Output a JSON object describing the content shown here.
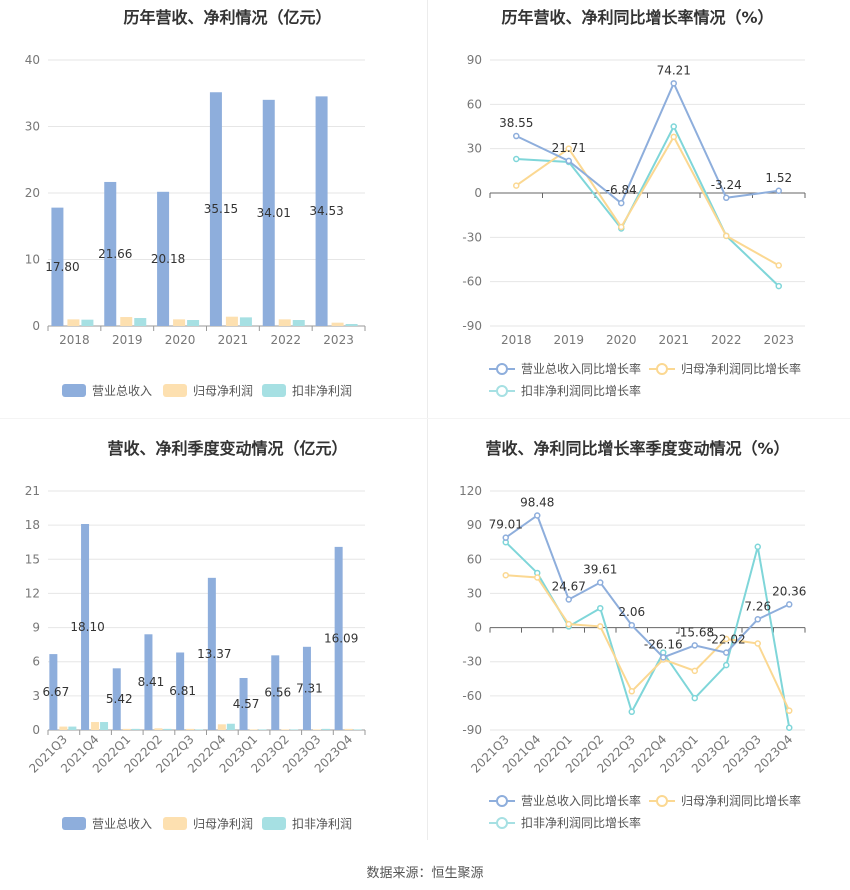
{
  "source_text": "数据来源：恒生聚源",
  "colors": {
    "revenue": "#8eaedc",
    "net_profit": "#fde0b0",
    "deducted_profit": "#a6e0e3",
    "rev_line": "#8eaedc",
    "np_line": "#fbd892",
    "dp_line": "#7fd6d9"
  },
  "chart_data": [
    {
      "type": "bar",
      "title": "历年营收、净利情况（亿元）",
      "categories": [
        "2018",
        "2019",
        "2020",
        "2021",
        "2022",
        "2023"
      ],
      "ylim": [
        0,
        40
      ],
      "yticks": [
        0,
        10,
        20,
        30,
        40
      ],
      "series": [
        {
          "name": "营业总收入",
          "values": [
            17.8,
            21.66,
            20.18,
            35.15,
            34.01,
            34.53
          ],
          "labels": [
            "17.80",
            "21.66",
            "20.18",
            "35.15",
            "34.01",
            "34.53"
          ]
        },
        {
          "name": "归母净利润",
          "values": [
            1.0,
            1.35,
            1.0,
            1.4,
            1.0,
            0.5
          ]
        },
        {
          "name": "扣非净利润",
          "values": [
            0.95,
            1.2,
            0.9,
            1.3,
            0.9,
            0.3
          ]
        }
      ],
      "legend": "bottom"
    },
    {
      "type": "line",
      "title": "历年营收、净利同比增长率情况（%）",
      "categories": [
        "2018",
        "2019",
        "2020",
        "2021",
        "2022",
        "2023"
      ],
      "ylim": [
        -90,
        90
      ],
      "yticks": [
        -90,
        -60,
        -30,
        0,
        30,
        60,
        90
      ],
      "series": [
        {
          "name": "营业总收入同比增长率",
          "values": [
            38.55,
            21.71,
            -6.84,
            74.21,
            -3.24,
            1.52
          ],
          "labels": [
            "38.55",
            "21.71",
            "-6.84",
            "74.21",
            "-3.24",
            "1.52"
          ]
        },
        {
          "name": "归母净利润同比增长率",
          "values": [
            5,
            30,
            -23,
            38,
            -29,
            -49
          ]
        },
        {
          "name": "扣非净利润同比增长率",
          "values": [
            23,
            21,
            -24,
            45,
            -29,
            -63
          ]
        }
      ],
      "legend": "bottom"
    },
    {
      "type": "bar",
      "title": "营收、净利季度变动情况（亿元）",
      "categories": [
        "2021Q3",
        "2021Q4",
        "2022Q1",
        "2022Q2",
        "2022Q3",
        "2022Q4",
        "2023Q1",
        "2023Q2",
        "2023Q3",
        "2023Q4"
      ],
      "ylim": [
        0,
        21
      ],
      "yticks": [
        0,
        3,
        6,
        9,
        12,
        15,
        18,
        21
      ],
      "series": [
        {
          "name": "营业总收入",
          "values": [
            6.67,
            18.1,
            5.42,
            8.41,
            6.81,
            13.37,
            4.57,
            6.56,
            7.31,
            16.09
          ],
          "labels": [
            "6.67",
            "18.10",
            "5.42",
            "8.41",
            "6.81",
            "13.37",
            "4.57",
            "6.56",
            "7.31",
            "16.09"
          ]
        },
        {
          "name": "归母净利润",
          "values": [
            0.3,
            0.7,
            0.1,
            0.15,
            0.1,
            0.5,
            0.05,
            0.05,
            0.05,
            0.1
          ]
        },
        {
          "name": "扣非净利润",
          "values": [
            0.3,
            0.7,
            0.1,
            0.1,
            0.05,
            0.55,
            0.05,
            0.05,
            0.1,
            0.05
          ]
        }
      ],
      "legend": "bottom"
    },
    {
      "type": "line",
      "title": "营收、净利同比增长率季度变动情况（%）",
      "categories": [
        "2021Q3",
        "2021Q4",
        "2022Q1",
        "2022Q2",
        "2022Q3",
        "2022Q4",
        "2023Q1",
        "2023Q2",
        "2023Q3",
        "2023Q4"
      ],
      "ylim": [
        -90,
        120
      ],
      "yticks": [
        -90,
        -60,
        -30,
        0,
        30,
        60,
        90,
        120
      ],
      "series": [
        {
          "name": "营业总收入同比增长率",
          "values": [
            79.01,
            98.48,
            24.67,
            39.61,
            2.06,
            -26.16,
            -15.68,
            -22.02,
            7.26,
            20.36
          ],
          "labels": [
            "79.01",
            "98.48",
            "24.67",
            "39.61",
            "2.06",
            "-26.16",
            "-15.68",
            "-22.02",
            "7.26",
            "20.36"
          ]
        },
        {
          "name": "归母净利润同比增长率",
          "values": [
            46,
            44,
            3,
            1,
            -56,
            -28,
            -38,
            -10,
            -14,
            -73
          ]
        },
        {
          "name": "扣非净利润同比增长率",
          "values": [
            75,
            48,
            1,
            17,
            -74,
            -22,
            -62,
            -33,
            71,
            -88
          ]
        }
      ],
      "legend": "bottom"
    }
  ]
}
